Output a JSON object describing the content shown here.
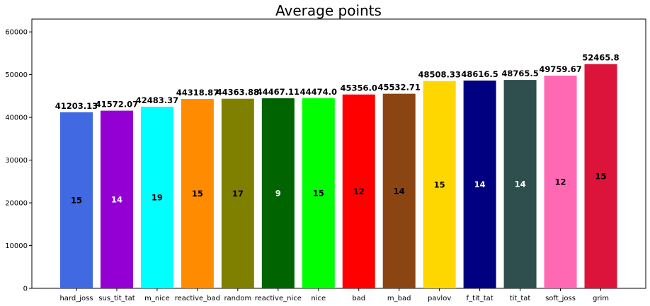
{
  "chart_data": {
    "type": "bar",
    "title": "Average points",
    "xlabel": "",
    "ylabel": "",
    "ylim": [
      0,
      63000
    ],
    "yticks": [
      0,
      10000,
      20000,
      30000,
      40000,
      50000,
      60000
    ],
    "ytick_labels": [
      "0",
      "10000",
      "20000",
      "30000",
      "40000",
      "50000",
      "60000"
    ],
    "grid": false,
    "legend": "none",
    "categories": [
      "hard_joss",
      "sus_tit_tat",
      "m_nice",
      "reactive_bad",
      "random",
      "reactive_nice",
      "nice",
      "bad",
      "m_bad",
      "pavlov",
      "f_tit_tat",
      "tit_tat",
      "soft_joss",
      "grim"
    ],
    "values": [
      41203.13,
      41572.07,
      42483.37,
      44318.87,
      44363.88,
      44467.11,
      44474.0,
      45356.0,
      45532.71,
      48508.33,
      48616.5,
      48765.5,
      49759.67,
      52465.8
    ],
    "value_labels": [
      "41203.13",
      "41572.07",
      "42483.37",
      "44318.87",
      "44363.88",
      "44467.11",
      "44474.0",
      "45356.0",
      "45532.71",
      "48508.33",
      "48616.5",
      "48765.5",
      "49759.67",
      "52465.8"
    ],
    "inner_labels": [
      "15",
      "14",
      "19",
      "15",
      "17",
      "9",
      "15",
      "12",
      "14",
      "15",
      "14",
      "14",
      "12",
      "15"
    ],
    "colors": [
      "#4169e1",
      "#9400d3",
      "#00ffff",
      "#ff8c00",
      "#808000",
      "#006400",
      "#00ff00",
      "#ff0000",
      "#8b4513",
      "#ffd700",
      "#000080",
      "#2f4f4f",
      "#ff69b4",
      "#dc143c"
    ],
    "inner_label_colors": [
      "#000000",
      "#ffffff",
      "#000000",
      "#000000",
      "#000000",
      "#ffffff",
      "#000000",
      "#000000",
      "#000000",
      "#000000",
      "#ffffff",
      "#ffffff",
      "#000000",
      "#000000"
    ]
  }
}
